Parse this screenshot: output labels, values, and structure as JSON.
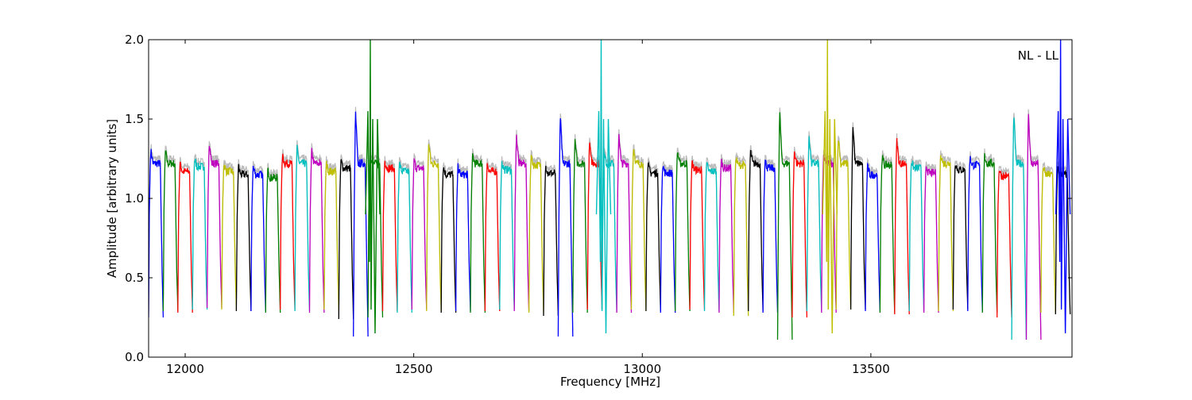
{
  "chart_data": {
    "type": "line",
    "title": "",
    "xlabel": "Frequency [MHz]",
    "ylabel": "Amplitude [arbitrary units]",
    "annotation": "NL - LL",
    "xlim": [
      11920,
      13940
    ],
    "ylim": [
      0.0,
      2.0
    ],
    "xticks": [
      12000,
      12500,
      13000,
      13500
    ],
    "yticks": [
      0.0,
      0.5,
      1.0,
      1.5,
      2.0
    ],
    "xtick_labels": [
      "12000",
      "12500",
      "13000",
      "13500"
    ],
    "ytick_labels": [
      "0.0",
      "0.5",
      "1.0",
      "1.5",
      "2.0"
    ],
    "grid": false,
    "legend": "none",
    "background_trace_color": "#bbbbbb",
    "color_cycle": [
      "#0000ff",
      "#008000",
      "#ff0000",
      "#00bfbf",
      "#bf00bf",
      "#bfbf00",
      "#000000"
    ],
    "channel_width_mhz": 32,
    "channel_start_mhz": 11920,
    "channel_count": 63,
    "channel_peak_amplitudes": [
      1.31,
      1.3,
      1.22,
      1.25,
      1.36,
      1.22,
      1.2,
      1.2,
      1.18,
      1.27,
      1.32,
      1.3,
      1.22,
      1.24,
      1.55,
      1.29,
      1.24,
      1.22,
      1.24,
      1.36,
      1.2,
      1.2,
      1.27,
      1.22,
      1.23,
      1.4,
      1.26,
      1.21,
      1.53,
      1.36,
      1.38,
      1.28,
      1.42,
      1.33,
      1.21,
      1.21,
      1.3,
      1.23,
      1.22,
      1.24,
      1.26,
      1.3,
      1.24,
      1.55,
      1.3,
      1.41,
      1.27,
      1.4,
      1.47,
      1.2,
      1.26,
      1.37,
      1.24,
      1.21,
      1.29,
      1.23,
      1.26,
      1.27,
      1.19,
      1.55,
      1.55,
      1.2,
      1.2
    ],
    "channel_min_amplitudes": [
      0.25,
      0.29,
      0.28,
      0.3,
      0.31,
      0.3,
      0.29,
      0.29,
      0.28,
      0.3,
      0.29,
      0.28,
      0.3,
      0.24,
      0.13,
      0.25,
      0.29,
      0.28,
      0.3,
      0.29,
      0.28,
      0.29,
      0.28,
      0.29,
      0.3,
      0.29,
      0.28,
      0.26,
      0.13,
      0.28,
      0.3,
      0.29,
      0.28,
      0.3,
      0.29,
      0.28,
      0.29,
      0.3,
      0.29,
      0.28,
      0.26,
      0.29,
      0.28,
      0.11,
      0.25,
      0.29,
      0.28,
      0.3,
      0.3,
      0.29,
      0.28,
      0.27,
      0.29,
      0.28,
      0.29,
      0.3,
      0.29,
      0.28,
      0.25,
      0.11,
      0.11,
      0.28,
      0.27
    ],
    "spikes": [
      {
        "x": 12405,
        "y": 2.0,
        "series": "#008000"
      },
      {
        "x": 12910,
        "y": 2.0,
        "series": "#00bfbf"
      },
      {
        "x": 13405,
        "y": 2.0,
        "series": "#bfbf00"
      },
      {
        "x": 13915,
        "y": 2.0,
        "series": "#0000ff"
      }
    ]
  }
}
